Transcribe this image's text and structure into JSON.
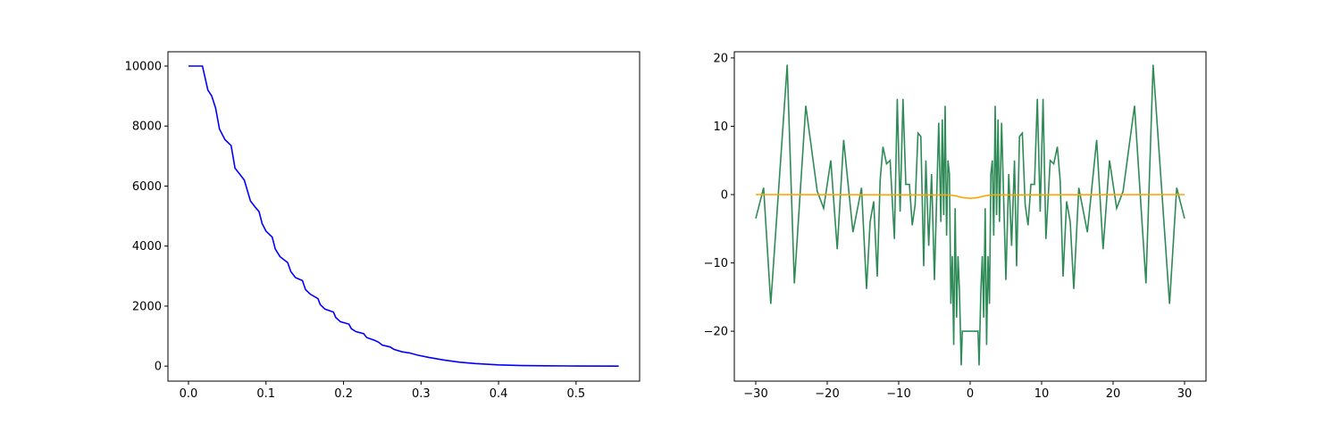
{
  "chart_data": [
    {
      "type": "line",
      "xlim": [
        -0.0265,
        0.582
      ],
      "ylim": [
        -500,
        10476
      ],
      "xticks": [
        {
          "value": 0,
          "label": "0.0"
        },
        0.1,
        0.2,
        0.3,
        0.4,
        0.5
      ],
      "yticks": [
        0,
        2000,
        4000,
        6000,
        8000,
        10000
      ],
      "series": [
        {
          "color": "#0000ff",
          "x": [
            0,
            0.018,
            0.025,
            0.03,
            0.035,
            0.04,
            0.047,
            0.055,
            0.06,
            0.066,
            0.072,
            0.08,
            0.086,
            0.091,
            0.095,
            0.1,
            0.108,
            0.112,
            0.118,
            0.128,
            0.132,
            0.138,
            0.147,
            0.151,
            0.157,
            0.167,
            0.17,
            0.176,
            0.187,
            0.19,
            0.196,
            0.207,
            0.21,
            0.216,
            0.226,
            0.23,
            0.24,
            0.245,
            0.25,
            0.26,
            0.265,
            0.275,
            0.285,
            0.295,
            0.31,
            0.33,
            0.35,
            0.37,
            0.4,
            0.43,
            0.46,
            0.5,
            0.555
          ],
          "values": [
            10000,
            10000,
            9200,
            9000,
            8600,
            7900,
            7550,
            7350,
            6600,
            6400,
            6200,
            5500,
            5300,
            5150,
            4750,
            4500,
            4300,
            3900,
            3650,
            3450,
            3150,
            2950,
            2850,
            2550,
            2400,
            2250,
            2050,
            1900,
            1800,
            1620,
            1480,
            1400,
            1250,
            1150,
            1080,
            950,
            860,
            800,
            700,
            640,
            560,
            480,
            440,
            370,
            290,
            200,
            130,
            85,
            40,
            20,
            10,
            4,
            1
          ]
        }
      ]
    },
    {
      "type": "line",
      "xlim": [
        -33,
        33
      ],
      "ylim": [
        -27.3,
        20.9
      ],
      "xticks": [
        {
          "value": -30,
          "label": "−30"
        },
        {
          "value": -20,
          "label": "−20"
        },
        {
          "value": -10,
          "label": "−10"
        },
        0,
        10,
        20,
        30
      ],
      "yticks": [
        {
          "value": -20,
          "label": "−20"
        },
        {
          "value": -10,
          "label": "−10"
        },
        0,
        10,
        20
      ],
      "series": [
        {
          "color": "#2e8b57",
          "x": [
            -30,
            -28.9,
            -27.9,
            -25.6,
            -24.6,
            -23,
            -21.4,
            -20.5,
            -19.5,
            -18.6,
            -17.7,
            -16.4,
            -15.2,
            -14.5,
            -14,
            -13.5,
            -13,
            -12.6,
            -12.2,
            -11.7,
            -11.2,
            -10.6,
            -10.2,
            -9.8,
            -9.4,
            -9,
            -8.5,
            -8.1,
            -7.7,
            -7.3,
            -6.9,
            -6.5,
            -6.2,
            -5.8,
            -5.4,
            -5,
            -4.7,
            -4.4,
            -4.1,
            -3.9,
            -3.7,
            -3.5,
            -3.3,
            -3.1,
            -2.9,
            -2.7,
            -2.5,
            -2.3,
            -2.1,
            -1.9,
            -1.7,
            -1.5,
            -1.25,
            -1.1,
            0,
            1.1,
            1.25,
            1.5,
            1.7,
            1.9,
            2.1,
            2.3,
            2.5,
            2.7,
            2.9,
            3.1,
            3.3,
            3.5,
            3.7,
            3.9,
            4.1,
            4.4,
            4.7,
            5,
            5.4,
            5.8,
            6.2,
            6.5,
            6.9,
            7.3,
            7.7,
            8.1,
            8.5,
            9,
            9.4,
            9.8,
            10.2,
            10.6,
            11.2,
            11.7,
            12.2,
            12.6,
            13,
            13.5,
            14,
            14.5,
            15.2,
            16.4,
            17.7,
            18.6,
            19.5,
            20.5,
            21.4,
            23,
            24.6,
            25.6,
            27.9,
            28.9,
            30
          ],
          "values": [
            -3.5,
            1,
            -16,
            19,
            -13,
            13,
            0.5,
            -2,
            5,
            -8,
            8,
            -5.5,
            1,
            -13.8,
            -4,
            -1,
            -12,
            2,
            7,
            4.5,
            5,
            -6.5,
            14,
            -2.5,
            14,
            1.5,
            1.5,
            -4.5,
            -1.5,
            9,
            8.5,
            -10.5,
            5,
            -7.5,
            3,
            -12.5,
            -1,
            10.5,
            -4,
            11,
            -3,
            13,
            -6,
            5,
            3,
            -16,
            -9,
            -22,
            -2,
            -18,
            -9,
            -14,
            -25,
            -20,
            -20,
            -20,
            -25,
            -14,
            -9,
            -18,
            -2,
            -22,
            -9,
            -16,
            3,
            5,
            -6,
            13,
            -3,
            11,
            -4,
            10.5,
            -1,
            -12.5,
            3,
            -7.5,
            5,
            -10.5,
            8.5,
            9,
            -1.5,
            -4.5,
            1.5,
            1.5,
            14,
            -2.5,
            14,
            -6.5,
            5,
            4.5,
            7,
            2,
            -12,
            -1,
            -4,
            -13.8,
            1,
            -5.5,
            8,
            -8,
            5,
            -2,
            0.5,
            13,
            -13,
            19,
            -16,
            1,
            -3.5
          ]
        },
        {
          "color": "#ffa500",
          "x": [
            -30,
            -3,
            -2,
            -1,
            0,
            1,
            2,
            3,
            30
          ],
          "values": [
            0,
            -0.05,
            -0.2,
            -0.45,
            -0.55,
            -0.45,
            -0.2,
            -0.05,
            0
          ]
        }
      ]
    }
  ]
}
